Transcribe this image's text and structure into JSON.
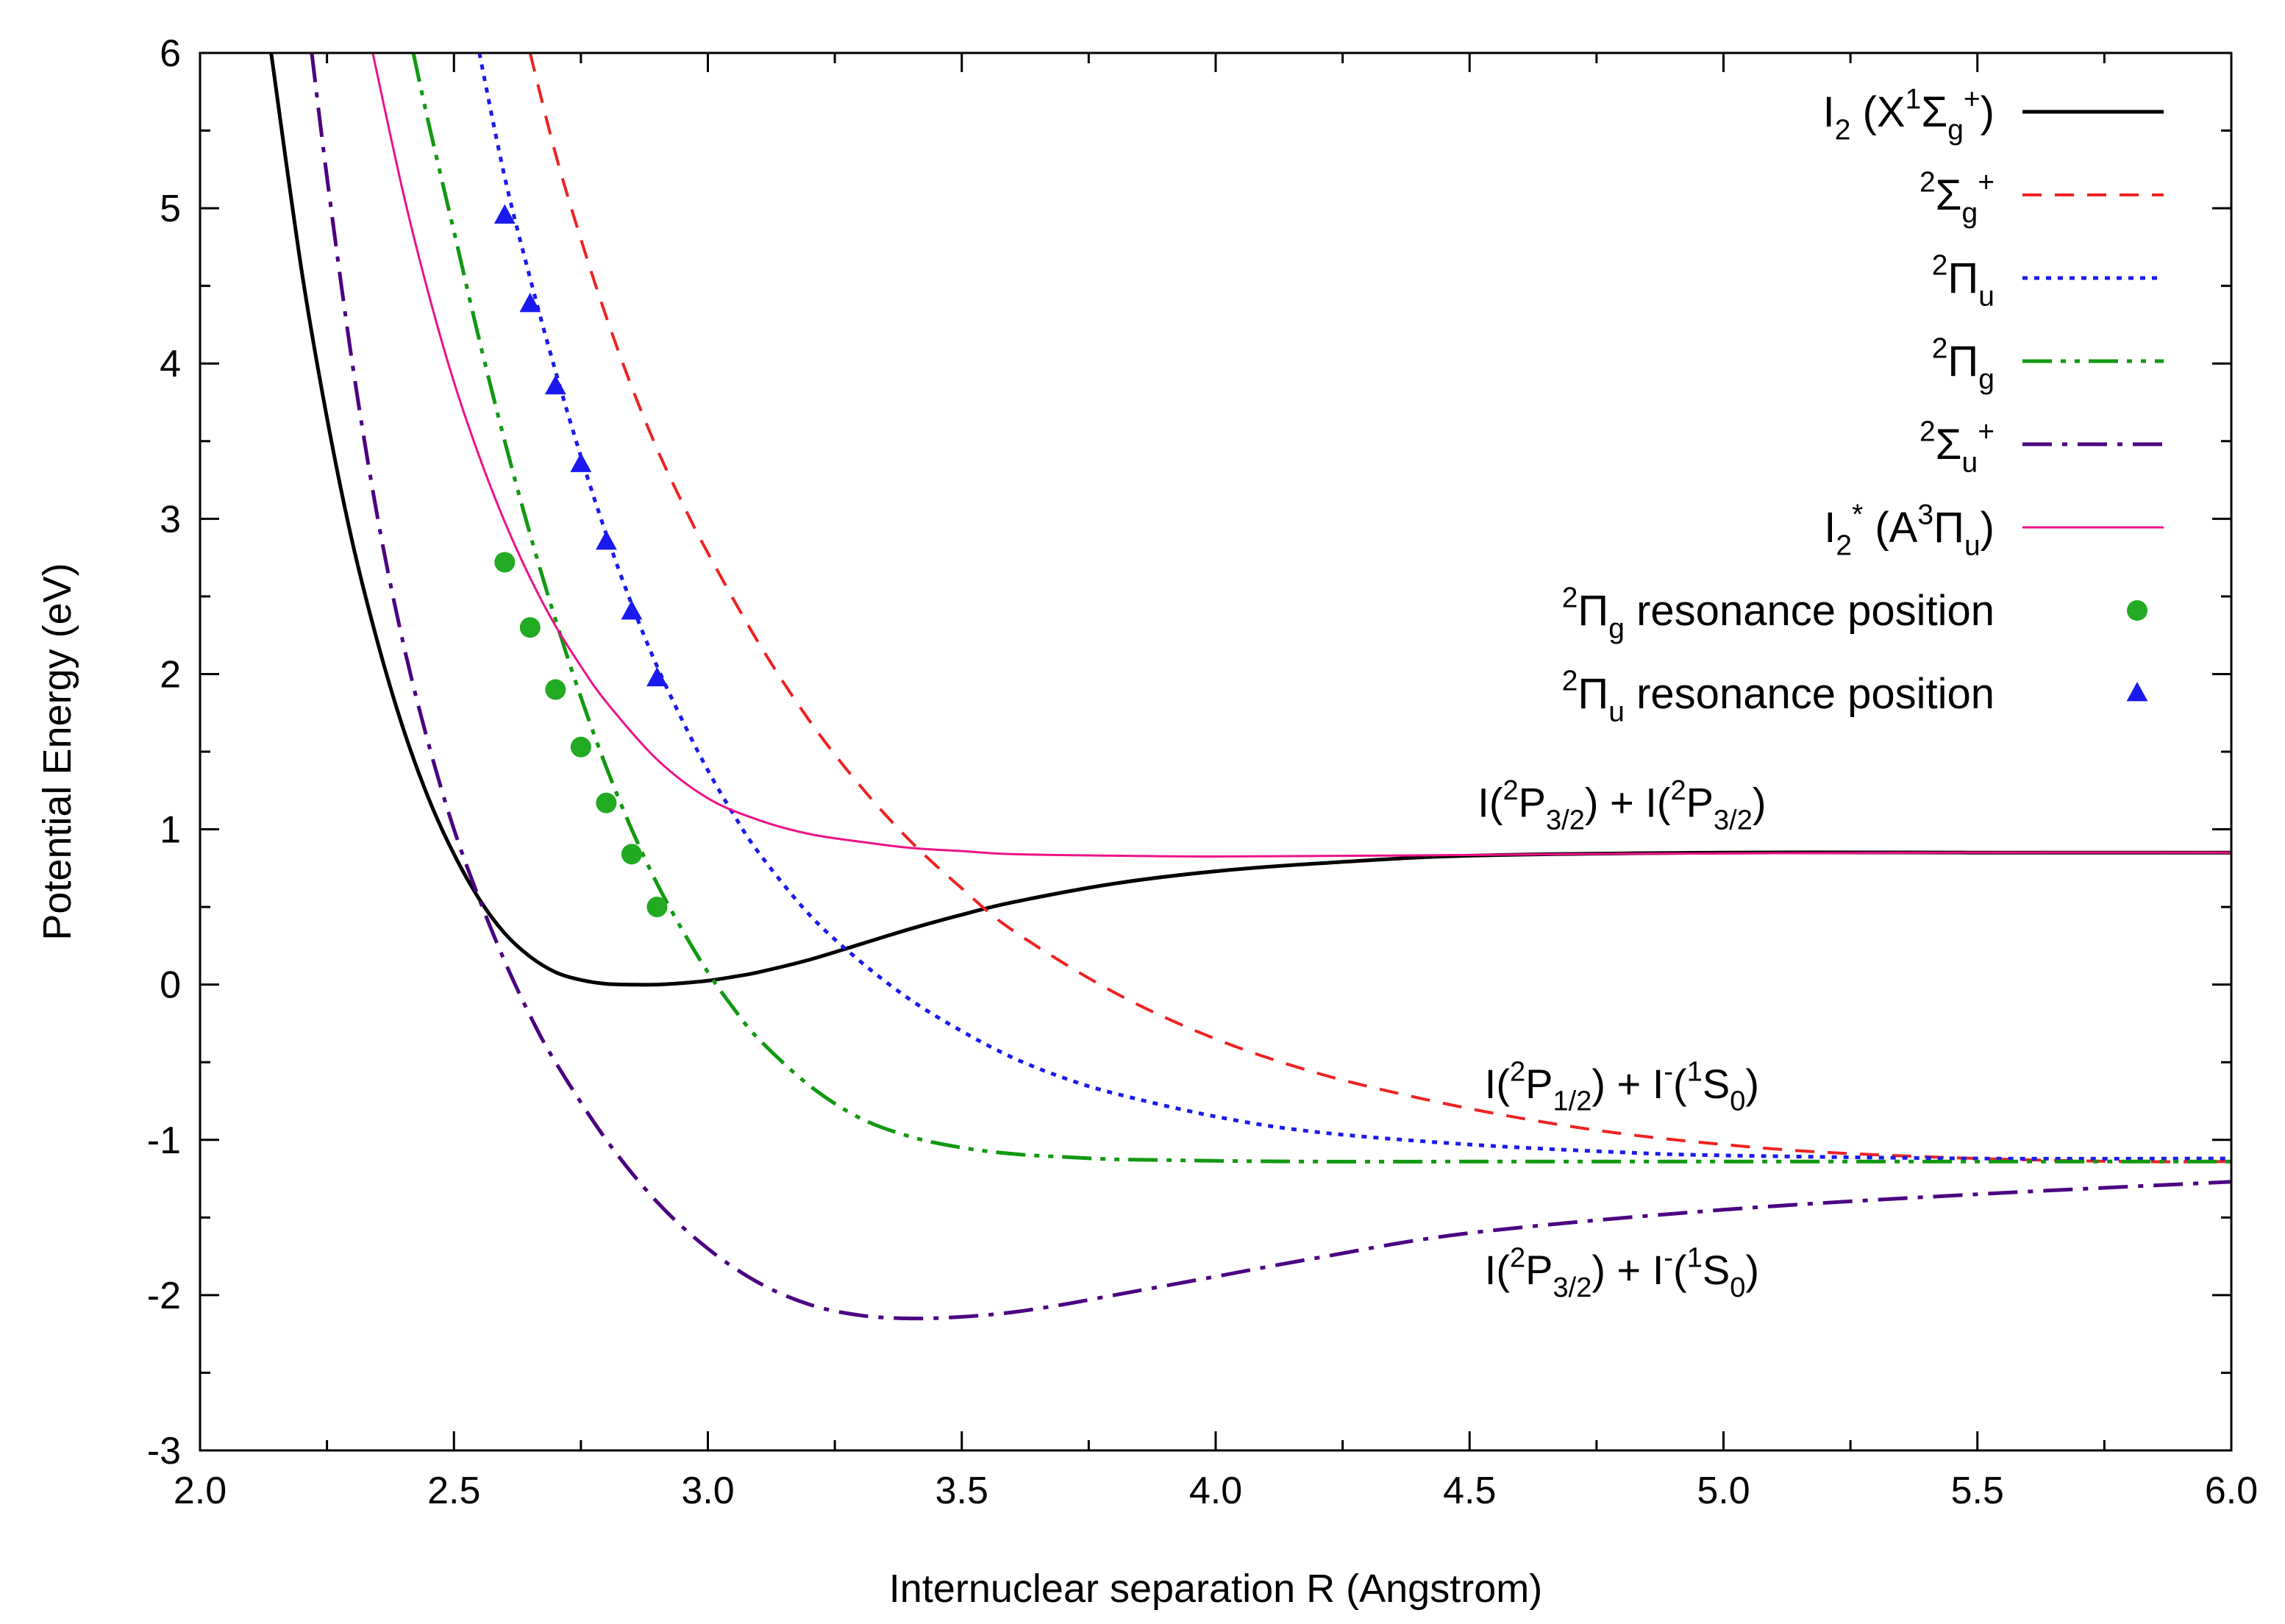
{
  "chart_data": {
    "type": "line",
    "title": "",
    "xlabel": "Internuclear separation R (Angstrom)",
    "ylabel": "Potential Energy (eV)",
    "xlim": [
      2.0,
      6.0
    ],
    "ylim": [
      -3,
      6
    ],
    "x_ticks": [
      2.0,
      2.5,
      3.0,
      3.5,
      4.0,
      4.5,
      5.0,
      5.5,
      6.0
    ],
    "x_tick_labels": [
      "2.0",
      "2.5",
      "3.0",
      "3.5",
      "4.0",
      "4.5",
      "5.0",
      "5.5",
      "6.0"
    ],
    "y_ticks": [
      -3,
      -2,
      -1,
      0,
      1,
      2,
      3,
      4,
      5,
      6
    ],
    "y_tick_labels": [
      "-3",
      "-2",
      "-1",
      "0",
      "1",
      "2",
      "3",
      "4",
      "5",
      "6"
    ],
    "grid": false,
    "legend_position": "top-right",
    "series": [
      {
        "name": "I2 (X1Σg+)",
        "label_parts": [
          [
            "I",
            ""
          ],
          [
            "2",
            "sub"
          ],
          [
            " (X",
            ""
          ],
          [
            "1",
            "sup"
          ],
          [
            "Σ",
            ""
          ],
          [
            "g",
            "sub"
          ],
          [
            "+",
            "sup"
          ],
          [
            ")",
            ""
          ]
        ],
        "color": "#000000",
        "style": "solid",
        "x": [
          2.14,
          2.2,
          2.25,
          2.3,
          2.35,
          2.4,
          2.45,
          2.5,
          2.55,
          2.6,
          2.65,
          2.7,
          2.75,
          2.8,
          2.85,
          2.9,
          2.95,
          3.0,
          3.05,
          3.1,
          3.2,
          3.3,
          3.4,
          3.5,
          3.6,
          3.8,
          4.0,
          4.2,
          4.5,
          5.0,
          5.5,
          6.0
        ],
        "y": [
          6.0,
          4.6,
          3.65,
          2.85,
          2.2,
          1.65,
          1.2,
          0.84,
          0.55,
          0.33,
          0.18,
          0.08,
          0.03,
          0.005,
          0.0,
          0.0,
          0.01,
          0.025,
          0.05,
          0.08,
          0.16,
          0.26,
          0.36,
          0.45,
          0.53,
          0.65,
          0.73,
          0.78,
          0.83,
          0.85,
          0.85,
          0.85
        ]
      },
      {
        "name": "2Σg+",
        "label_parts": [
          [
            "2",
            "sup"
          ],
          [
            "Σ",
            ""
          ],
          [
            "g",
            "sub"
          ],
          [
            "+",
            "sup"
          ]
        ],
        "color": "#ee2222",
        "style": "dash",
        "x": [
          2.65,
          2.7,
          2.75,
          2.8,
          2.85,
          2.9,
          2.95,
          3.0,
          3.1,
          3.2,
          3.3,
          3.4,
          3.5,
          3.6,
          3.8,
          4.0,
          4.2,
          4.4,
          4.6,
          4.8,
          5.0,
          5.2,
          5.5,
          5.8,
          6.0
        ],
        "y": [
          6.0,
          5.35,
          4.8,
          4.3,
          3.85,
          3.45,
          3.1,
          2.78,
          2.2,
          1.7,
          1.28,
          0.92,
          0.62,
          0.35,
          -0.05,
          -0.35,
          -0.57,
          -0.73,
          -0.86,
          -0.96,
          -1.03,
          -1.08,
          -1.12,
          -1.14,
          -1.14
        ]
      },
      {
        "name": "2Πu",
        "label_parts": [
          [
            "2",
            "sup"
          ],
          [
            "Π",
            ""
          ],
          [
            "u",
            "sub"
          ]
        ],
        "color": "#1a1aee",
        "style": "dot",
        "x": [
          2.55,
          2.6,
          2.65,
          2.7,
          2.75,
          2.8,
          2.85,
          2.9,
          2.95,
          3.0,
          3.05,
          3.1,
          3.2,
          3.3,
          3.4,
          3.5,
          3.6,
          3.7,
          3.8,
          4.0,
          4.2,
          4.5,
          4.8,
          5.0,
          5.5,
          6.0
        ],
        "y": [
          6.0,
          5.2,
          4.55,
          3.95,
          3.4,
          2.9,
          2.45,
          2.05,
          1.7,
          1.38,
          1.1,
          0.85,
          0.45,
          0.15,
          -0.1,
          -0.3,
          -0.47,
          -0.6,
          -0.7,
          -0.85,
          -0.95,
          -1.03,
          -1.08,
          -1.1,
          -1.12,
          -1.12
        ]
      },
      {
        "name": "2Πg",
        "label_parts": [
          [
            "2",
            "sup"
          ],
          [
            "Π",
            ""
          ],
          [
            "g",
            "sub"
          ]
        ],
        "color": "#119911",
        "style": "dashdotdot",
        "x": [
          2.42,
          2.45,
          2.5,
          2.55,
          2.6,
          2.65,
          2.7,
          2.75,
          2.8,
          2.85,
          2.9,
          2.95,
          3.0,
          3.05,
          3.1,
          3.2,
          3.3,
          3.4,
          3.5,
          3.6,
          3.7,
          3.8,
          3.9,
          4.0,
          4.2,
          4.5,
          5.0,
          5.5,
          6.0
        ],
        "y": [
          6.0,
          5.55,
          4.85,
          4.15,
          3.5,
          2.9,
          2.35,
          1.85,
          1.4,
          1.0,
          0.65,
          0.35,
          0.08,
          -0.15,
          -0.35,
          -0.65,
          -0.86,
          -0.98,
          -1.05,
          -1.09,
          -1.11,
          -1.125,
          -1.13,
          -1.135,
          -1.14,
          -1.14,
          -1.14,
          -1.14,
          -1.14
        ]
      },
      {
        "name": "2Σu+",
        "label_parts": [
          [
            "2",
            "sup"
          ],
          [
            "Σ",
            ""
          ],
          [
            "u",
            "sub"
          ],
          [
            "+",
            "sup"
          ]
        ],
        "color": "#4b0082",
        "style": "dashdot",
        "x": [
          2.22,
          2.25,
          2.3,
          2.35,
          2.4,
          2.45,
          2.5,
          2.55,
          2.6,
          2.65,
          2.7,
          2.8,
          2.9,
          3.0,
          3.1,
          3.2,
          3.3,
          3.4,
          3.5,
          3.6,
          3.7,
          3.8,
          4.0,
          4.2,
          4.5,
          5.0,
          5.5,
          6.0
        ],
        "y": [
          6.0,
          5.2,
          4.0,
          3.0,
          2.2,
          1.55,
          1.0,
          0.55,
          0.15,
          -0.2,
          -0.5,
          -1.0,
          -1.4,
          -1.7,
          -1.92,
          -2.06,
          -2.13,
          -2.15,
          -2.14,
          -2.11,
          -2.06,
          -2.0,
          -1.88,
          -1.76,
          -1.6,
          -1.45,
          -1.35,
          -1.27
        ]
      },
      {
        "name": "I2* (A3Πu)",
        "label_parts": [
          [
            "I",
            ""
          ],
          [
            "2",
            "sub"
          ],
          [
            "*",
            "sup"
          ],
          [
            " (A",
            ""
          ],
          [
            "3",
            "sup"
          ],
          [
            "Π",
            ""
          ],
          [
            "u",
            "sub"
          ],
          [
            ")",
            ""
          ]
        ],
        "color": "#ee1188",
        "style": "solid-thin",
        "x": [
          2.34,
          2.4,
          2.45,
          2.5,
          2.55,
          2.6,
          2.65,
          2.7,
          2.75,
          2.8,
          2.9,
          3.0,
          3.1,
          3.2,
          3.3,
          3.4,
          3.5,
          3.6,
          3.8,
          4.0,
          4.3,
          4.7,
          5.0,
          5.5,
          6.0
        ],
        "y": [
          6.0,
          5.1,
          4.45,
          3.88,
          3.4,
          2.98,
          2.62,
          2.31,
          2.05,
          1.82,
          1.45,
          1.2,
          1.06,
          0.97,
          0.92,
          0.88,
          0.86,
          0.84,
          0.83,
          0.825,
          0.83,
          0.84,
          0.845,
          0.85,
          0.85
        ]
      },
      {
        "name": "2Πg resonance position",
        "label_parts": [
          [
            "2",
            "sup"
          ],
          [
            "Π",
            ""
          ],
          [
            "g",
            "sub"
          ],
          [
            " resonance position",
            ""
          ]
        ],
        "color": "#22aa22",
        "style": "marker-circle",
        "x": [
          2.6,
          2.65,
          2.7,
          2.75,
          2.8,
          2.85,
          2.9
        ],
        "y": [
          2.72,
          2.3,
          1.9,
          1.53,
          1.17,
          0.84,
          0.5
        ]
      },
      {
        "name": "2Πu resonance position",
        "label_parts": [
          [
            "2",
            "sup"
          ],
          [
            "Π",
            ""
          ],
          [
            "u",
            "sub"
          ],
          [
            " resonance position",
            ""
          ]
        ],
        "color": "#1a1aee",
        "style": "marker-triangle",
        "x": [
          2.6,
          2.65,
          2.7,
          2.75,
          2.8,
          2.85,
          2.9
        ],
        "y": [
          4.95,
          4.38,
          3.85,
          3.35,
          2.85,
          2.4,
          1.97
        ]
      }
    ],
    "annotations": [
      {
        "text": "I(2P3/2) + I(2P3/2)",
        "parts": [
          [
            "I(",
            ""
          ],
          [
            "2",
            "sup"
          ],
          [
            "P",
            ""
          ],
          [
            "3/2",
            "sub"
          ],
          [
            ") + I(",
            ""
          ],
          [
            "2",
            "sup"
          ],
          [
            "P",
            ""
          ],
          [
            "3/2",
            "sub"
          ],
          [
            ")",
            ""
          ]
        ],
        "x": 4.8,
        "y": 1.08
      },
      {
        "text": "I(2P1/2) + I-(1S0)",
        "parts": [
          [
            "I(",
            ""
          ],
          [
            "2",
            "sup"
          ],
          [
            "P",
            ""
          ],
          [
            "1/2",
            "sub"
          ],
          [
            ") + I",
            ""
          ],
          [
            "-",
            "sup"
          ],
          [
            "(",
            ""
          ],
          [
            "1",
            "sup"
          ],
          [
            "S",
            ""
          ],
          [
            "0",
            "sub"
          ],
          [
            ")",
            ""
          ]
        ],
        "x": 4.8,
        "y": -0.73
      },
      {
        "text": "I(2P3/2) + I-(1S0)",
        "parts": [
          [
            "I(",
            ""
          ],
          [
            "2",
            "sup"
          ],
          [
            "P",
            ""
          ],
          [
            "3/2",
            "sub"
          ],
          [
            ") + I",
            ""
          ],
          [
            "-",
            "sup"
          ],
          [
            "(",
            ""
          ],
          [
            "1",
            "sup"
          ],
          [
            "S",
            ""
          ],
          [
            "0",
            "sub"
          ],
          [
            ")",
            ""
          ]
        ],
        "x": 4.8,
        "y": -1.93
      }
    ]
  }
}
